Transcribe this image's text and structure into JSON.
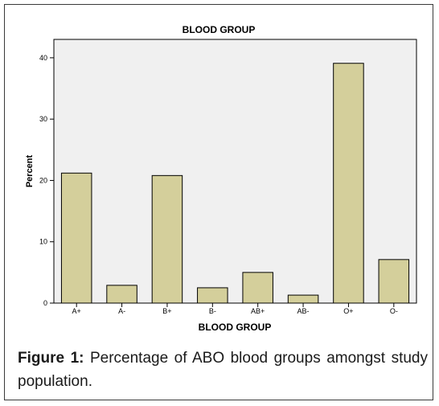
{
  "chart_data": {
    "type": "bar",
    "title": "BLOOD GROUP",
    "xlabel": "BLOOD GROUP",
    "ylabel": "Percent",
    "categories": [
      "A+",
      "A-",
      "B+",
      "B-",
      "AB+",
      "AB-",
      "O+",
      "O-"
    ],
    "values": [
      21.2,
      2.9,
      20.8,
      2.5,
      5.0,
      1.3,
      39.1,
      7.1
    ],
    "ylim": [
      0,
      43
    ],
    "yticks": [
      0,
      10,
      20,
      30,
      40
    ],
    "grid": false,
    "legend": "none",
    "colors": {
      "bar": "#d4cf9b",
      "plot_bg": "#f0f0f0",
      "outline": "#000000"
    }
  },
  "caption": {
    "label": "Figure 1:",
    "text": " Percentage of ABO blood groups amongst study population."
  }
}
